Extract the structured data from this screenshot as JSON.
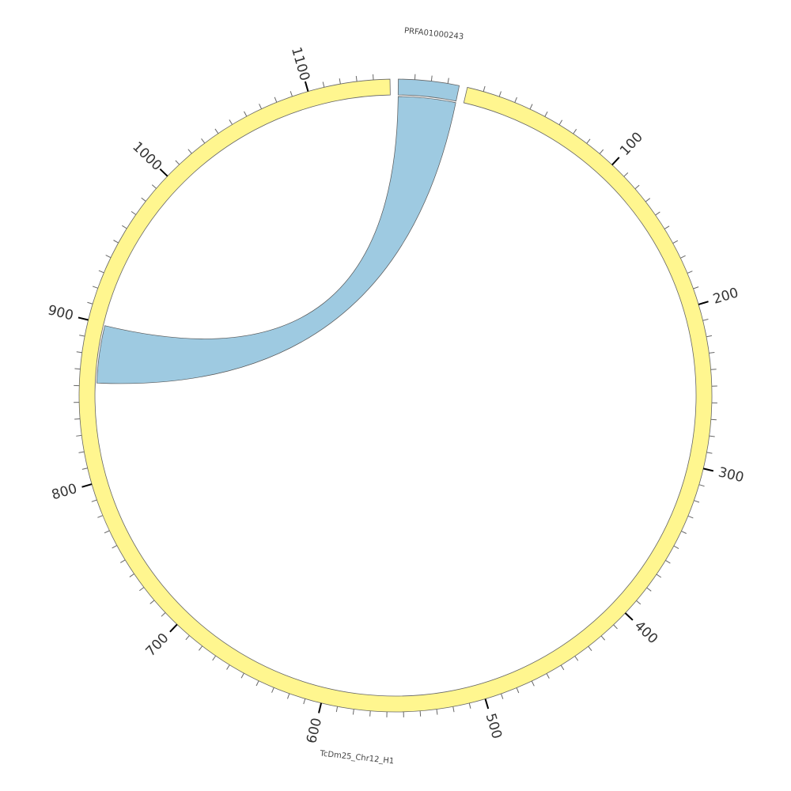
{
  "chart_data": {
    "type": "chord",
    "segments": [
      {
        "name": "PRFA01000243",
        "length": 37,
        "color": "#9ecae1",
        "ticks": []
      },
      {
        "name": "TcDm25_Chr12_H1",
        "length": 1150,
        "color": "#fff68f",
        "ticks": [
          100,
          200,
          300,
          400,
          500,
          600,
          700,
          800,
          900,
          1000,
          1100
        ]
      }
    ],
    "minor_tick_step": 10,
    "links": [
      {
        "source_segment": 0,
        "target_segment": 1,
        "source": [
          0,
          37
        ],
        "target": [
          899,
          862
        ],
        "color": "#9ecae1"
      }
    ]
  }
}
